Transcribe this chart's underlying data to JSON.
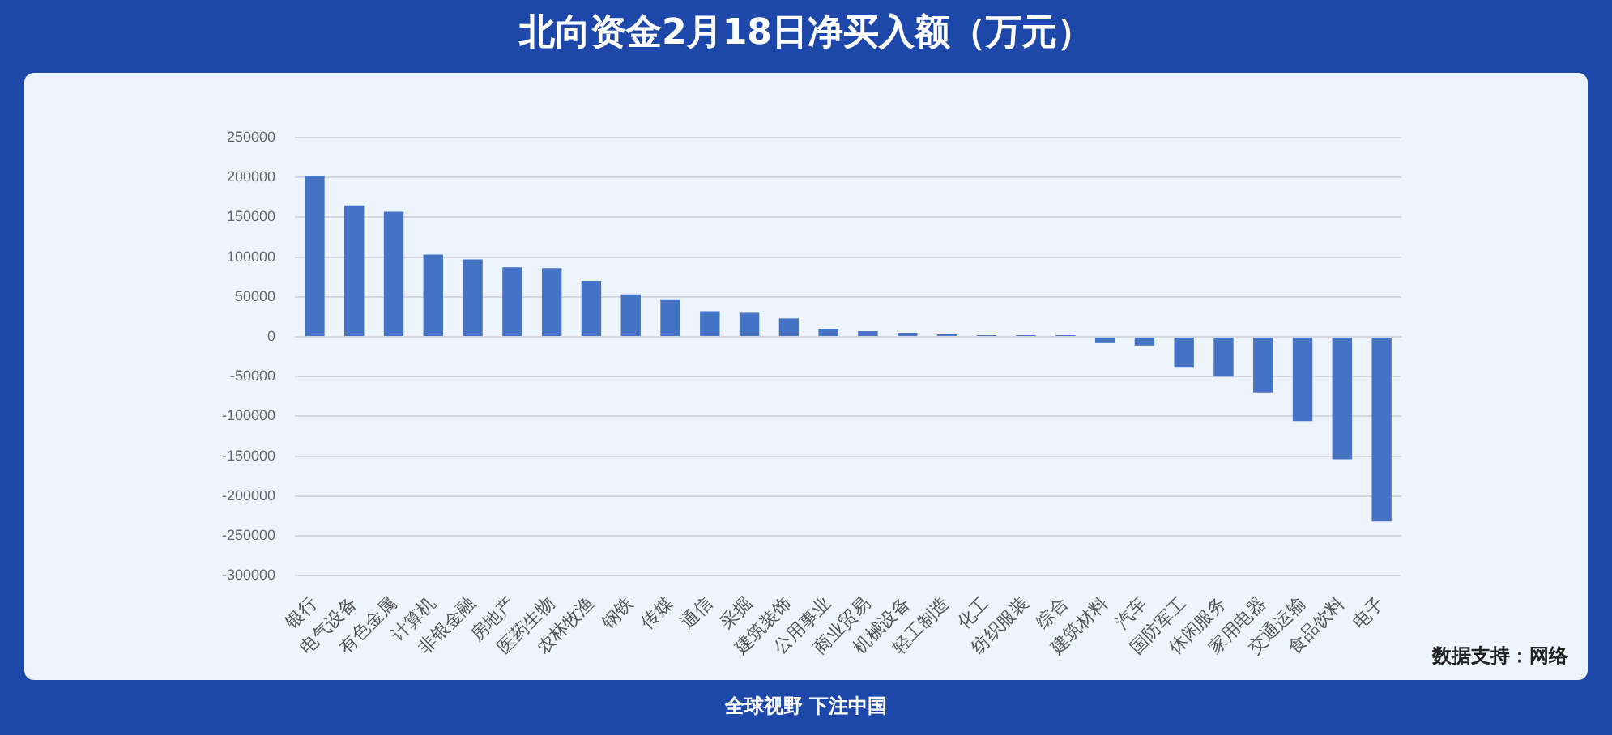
{
  "chart_data": {
    "type": "bar",
    "title": "北向资金2月18日净买入额（万元）",
    "categories": [
      "银行",
      "电气设备",
      "有色金属",
      "计算机",
      "非银金融",
      "房地产",
      "医药生物",
      "农林牧渔",
      "钢铁",
      "传媒",
      "通信",
      "采掘",
      "建筑装饰",
      "公用事业",
      "商业贸易",
      "机械设备",
      "轻工制造",
      "化工",
      "纺织服装",
      "综合",
      "建筑材料",
      "汽车",
      "国防军工",
      "休闲服务",
      "家用电器",
      "交通运输",
      "食品饮料",
      "电子"
    ],
    "values": [
      202000,
      165000,
      157000,
      103000,
      97000,
      87000,
      86000,
      70000,
      53000,
      47000,
      32000,
      30000,
      23000,
      10000,
      7000,
      5000,
      3000,
      2000,
      2000,
      2000,
      -8000,
      -11000,
      -39000,
      -50000,
      -70000,
      -106000,
      -154000,
      -232000
    ],
    "color": "#4472c4",
    "ylim": [
      -300000,
      250000
    ],
    "yticks": [
      -300000,
      -250000,
      -200000,
      -150000,
      -100000,
      -50000,
      0,
      50000,
      100000,
      150000,
      200000,
      250000
    ],
    "grid": "y",
    "annotations": [
      "数据支持：网络",
      "全球视野 下注中国"
    ]
  }
}
